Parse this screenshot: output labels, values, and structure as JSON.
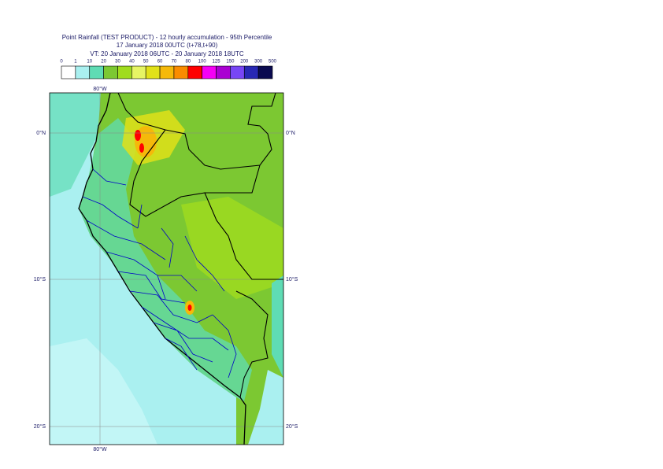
{
  "header": {
    "title": [
      "Point Rainfall (TEST PRODUCT) - 12 hourly accumulation - 95th Percentile",
      "17 January 2018 00UTC (t+78,t+90)",
      "VT: 20 January 2018 06UTC - 20 January 2018 18UTC"
    ]
  },
  "legend": {
    "labels": [
      "0",
      "1",
      "10",
      "20",
      "30",
      "40",
      "50",
      "60",
      "70",
      "80",
      "100",
      "125",
      "150",
      "200",
      "300",
      "500"
    ],
    "colors": [
      "#ffffff",
      "#aaf0f0",
      "#5fdcb4",
      "#7cc832",
      "#a0dc1e",
      "#e6f564",
      "#e1e119",
      "#f5b90a",
      "#fa8c00",
      "#ff0000",
      "#f500f5",
      "#aa00d2",
      "#7846f5",
      "#2828b4",
      "#0a0a50"
    ]
  },
  "map": {
    "lon_labels": [
      "80°W"
    ],
    "lat_labels": [
      "0°N",
      "10°S",
      "20°S"
    ]
  }
}
